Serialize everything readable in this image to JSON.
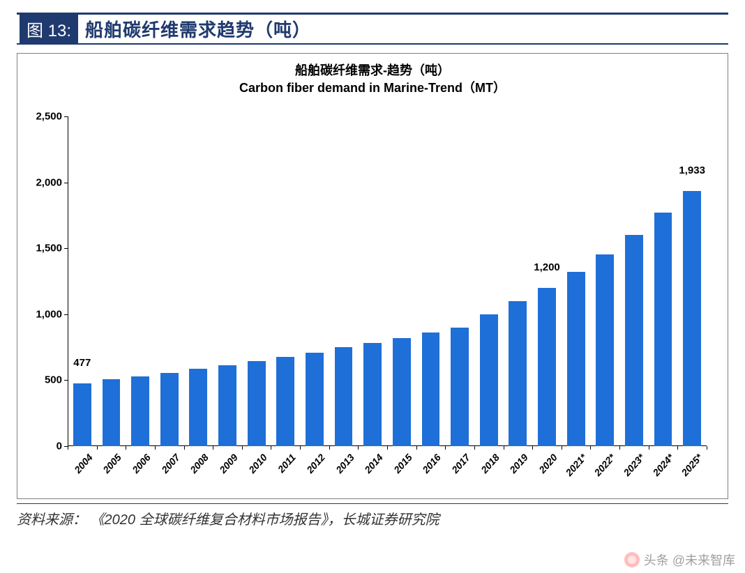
{
  "header": {
    "figure_number": "图 13:",
    "figure_title": "船舶碳纤维需求趋势（吨）"
  },
  "chart": {
    "type": "bar",
    "title_cn": "船舶碳纤维需求-趋势（吨）",
    "title_en": "Carbon fiber demand in Marine-Trend（MT）",
    "title_fontsize": 18,
    "title_color": "#000000",
    "background_color": "#ffffff",
    "border_color": "#808080",
    "bar_color": "#1f6fd8",
    "bar_width_ratio": 0.62,
    "axis_color": "#000000",
    "label_color": "#000000",
    "ylabel_fontsize": 15,
    "xlabel_fontsize": 14,
    "xlabel_rotation_deg": -48,
    "ylim": [
      0,
      2500
    ],
    "ytick_step": 500,
    "yticks": [
      "0",
      "500",
      "1,000",
      "1,500",
      "2,000",
      "2,500"
    ],
    "categories": [
      "2004",
      "2005",
      "2006",
      "2007",
      "2008",
      "2009",
      "2010",
      "2011",
      "2012",
      "2013",
      "2014",
      "2015",
      "2016",
      "2017",
      "2018",
      "2019",
      "2020",
      "2021*",
      "2022*",
      "2023*",
      "2024*",
      "2025*"
    ],
    "values": [
      477,
      510,
      530,
      555,
      585,
      615,
      645,
      675,
      710,
      750,
      780,
      820,
      860,
      900,
      1000,
      1100,
      1200,
      1320,
      1455,
      1600,
      1770,
      1933
    ],
    "bar_labels": [
      {
        "index": 0,
        "text": "477"
      },
      {
        "index": 16,
        "text": "1,200"
      },
      {
        "index": 21,
        "text": "1,933"
      }
    ]
  },
  "source": {
    "prefix": "资料来源：",
    "text": "《2020 全球碳纤维复合材料市场报告》，长城证券研究院"
  },
  "watermark": {
    "text": "头条 @未来智库"
  },
  "colors": {
    "brand_navy": "#1f3a6e"
  }
}
